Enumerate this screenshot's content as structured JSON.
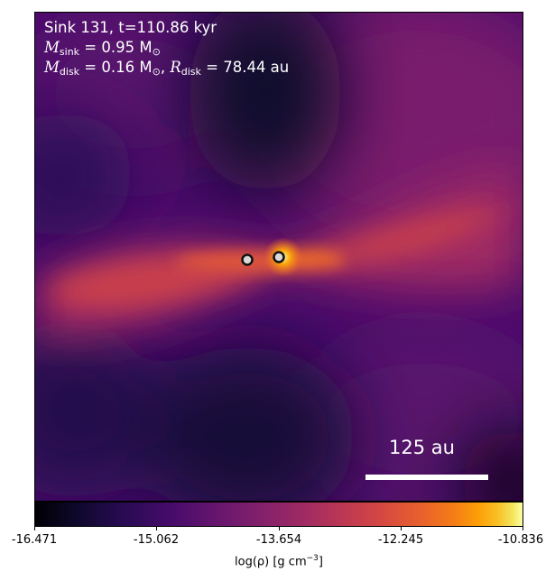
{
  "annotation": {
    "title": "Sink 131, t=110.86 kyr",
    "msink_symbol": "M",
    "msink_subscript": "sink",
    "msink_value": " = 0.95 M",
    "msink_unit_subscript": "⊙",
    "mdisk_symbol": "M",
    "mdisk_subscript": "disk",
    "mdisk_value": " = 0.16 M",
    "mdisk_unit_subscript": "⊙",
    "rdisk_sep": ", ",
    "rdisk_symbol": "R",
    "rdisk_subscript": "disk",
    "rdisk_value": " = 78.44 au"
  },
  "scale_bar": {
    "label": "125 au"
  },
  "colorbar": {
    "colormap": "inferno",
    "ticks": [
      "-16.471",
      "-15.062",
      "-13.654",
      "-12.245",
      "-10.836"
    ],
    "label_prefix": "log(ρ) [g cm",
    "label_exponent": "−3",
    "label_suffix": "]"
  },
  "sinks": {
    "count": 2,
    "marker_fill": "#d9d9d9",
    "marker_edge": "#111111"
  }
}
